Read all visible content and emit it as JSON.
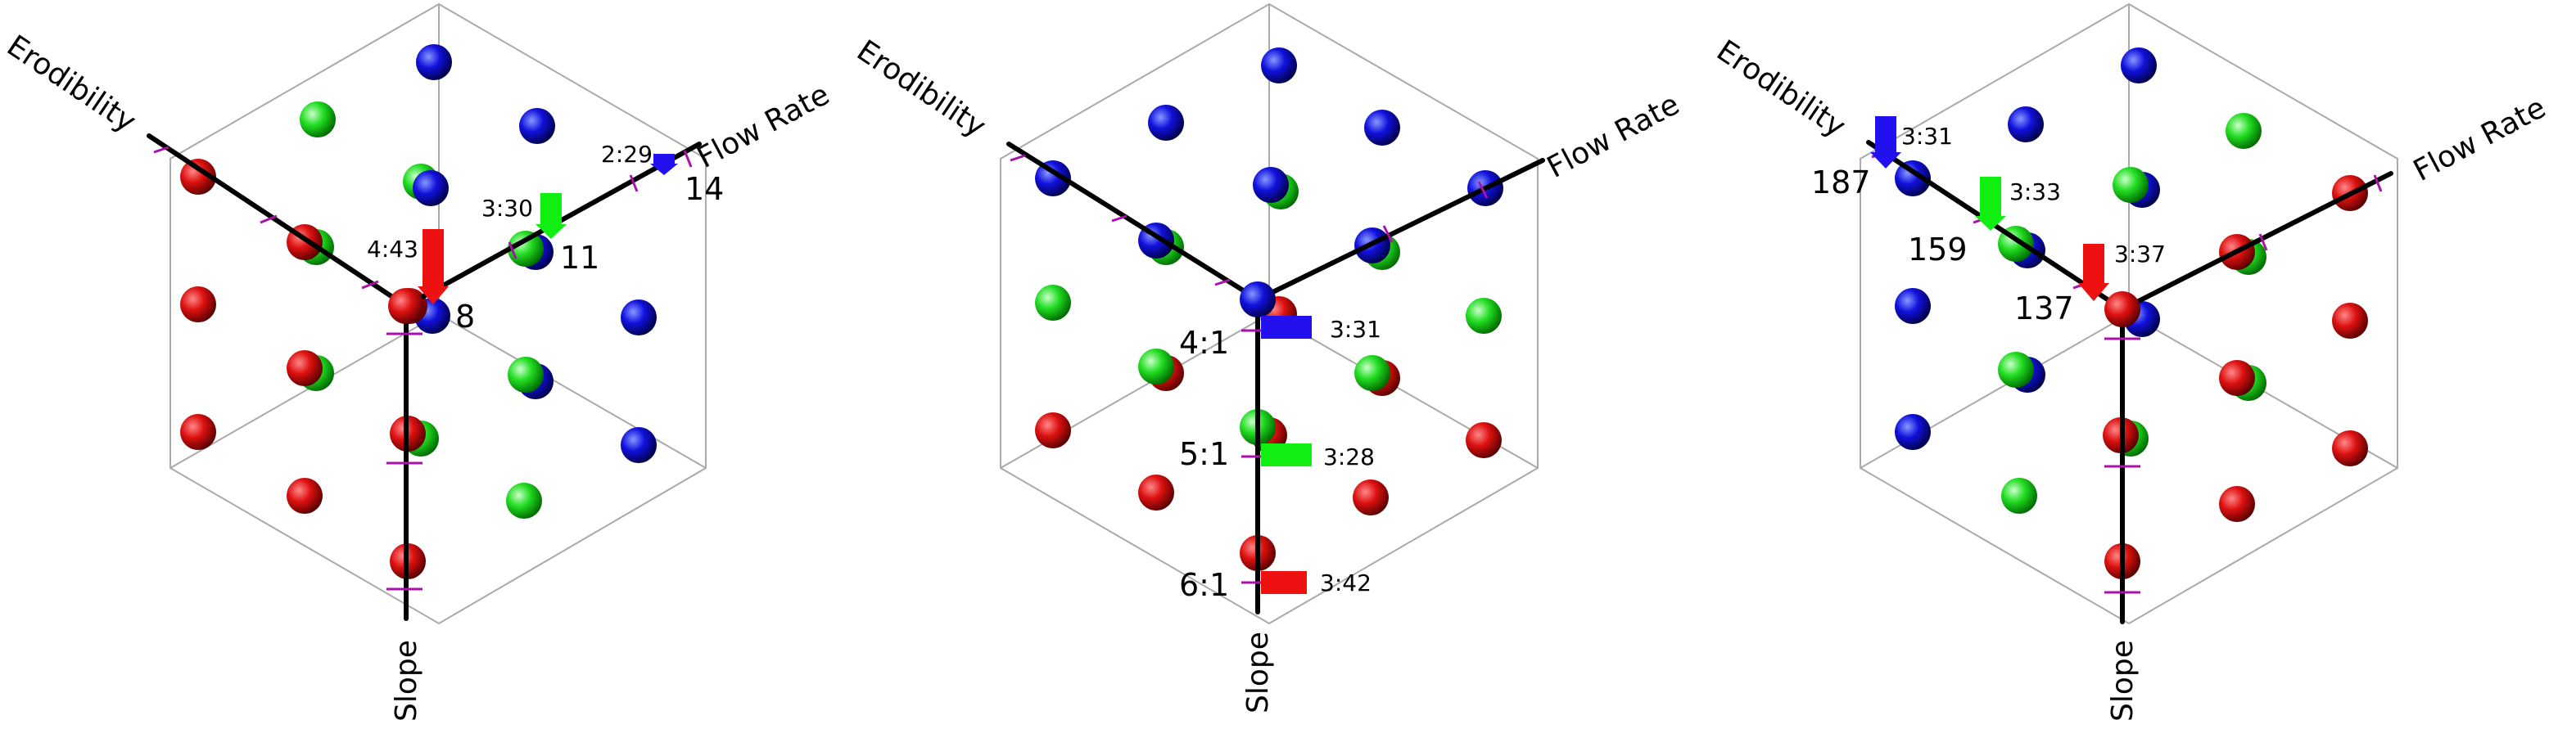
{
  "colors": {
    "red": "#ee1111",
    "green": "#11ee11",
    "blue": "#2211ee",
    "tick": "#aa11aa",
    "frame": "#aaaaaa"
  },
  "axes": {
    "erodibility": "Erodibility",
    "flow_rate": "Flow Rate",
    "slope": "Slope"
  },
  "panels": [
    {
      "id": "left",
      "bars": [
        {
          "color": "red",
          "label": "4:43"
        },
        {
          "color": "green",
          "label": "3:30"
        },
        {
          "color": "blue",
          "label": "2:29"
        }
      ],
      "values": [
        "8",
        "11",
        "14"
      ]
    },
    {
      "id": "middle",
      "bars": [
        {
          "color": "blue",
          "label": "3:31"
        },
        {
          "color": "green",
          "label": "3:28"
        },
        {
          "color": "red",
          "label": "3:42"
        }
      ],
      "values": [
        "4:1",
        "5:1",
        "6:1"
      ]
    },
    {
      "id": "right",
      "bars": [
        {
          "color": "blue",
          "label": "3:31"
        },
        {
          "color": "green",
          "label": "3:33"
        },
        {
          "color": "red",
          "label": "3:37"
        }
      ],
      "values": [
        "187",
        "159",
        "137"
      ]
    }
  ]
}
